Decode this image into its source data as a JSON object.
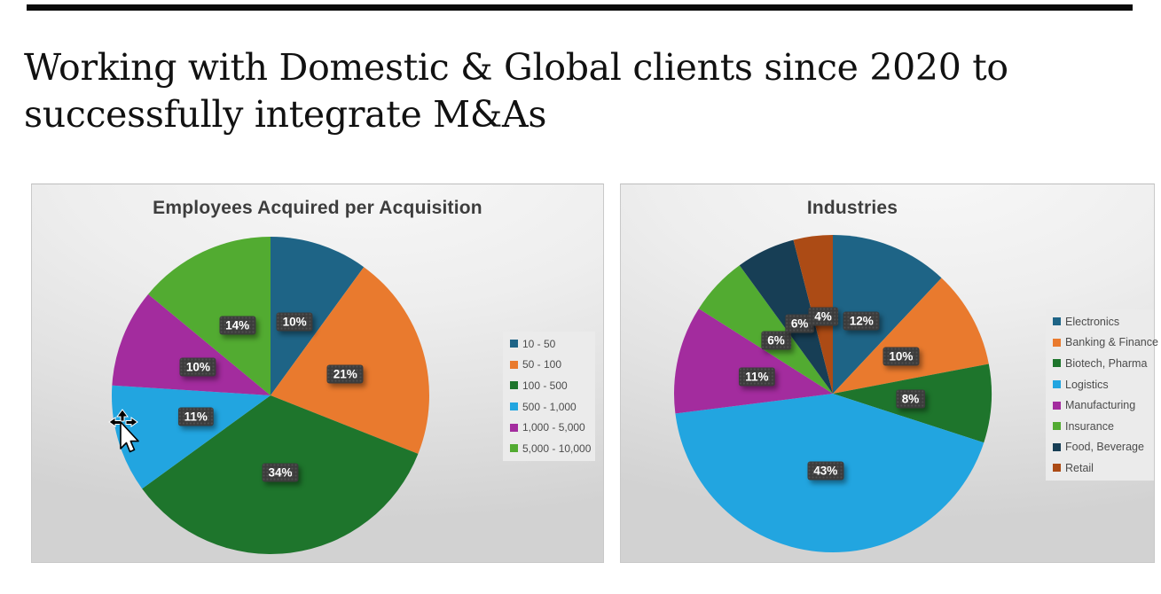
{
  "slide": {
    "title_line1": "Working with Domestic & Global clients since 2020 to",
    "title_line2": "successfully integrate M&As"
  },
  "chart_data": [
    {
      "type": "pie",
      "title": "Employees Acquired per Acquisition",
      "categories": [
        "10 - 50",
        "50 - 100",
        "100 - 500",
        "500 - 1,000",
        "1,000 - 5,000",
        "5,000 - 10,000"
      ],
      "values": [
        10,
        21,
        34,
        11,
        10,
        14
      ],
      "labels": [
        "10%",
        "21%",
        "34%",
        "11%",
        "10%",
        "14%"
      ],
      "unit": "percent",
      "colors": [
        "#1E6486",
        "#E97A2E",
        "#1E752C",
        "#22A5E0",
        "#A32C9E",
        "#52AB31"
      ],
      "legend_position": "right",
      "label_style": "dark-chip-white-text"
    },
    {
      "type": "pie",
      "title": "Industries",
      "categories": [
        "Electronics",
        "Banking & Finance",
        "Biotech, Pharma",
        "Logistics",
        "Manufacturing",
        "Insurance",
        "Food, Beverage",
        "Retail"
      ],
      "values": [
        12,
        10,
        8,
        43,
        11,
        6,
        6,
        4
      ],
      "labels": [
        "12%",
        "10%",
        "8%",
        "43%",
        "11%",
        "6%",
        "6%",
        "4%"
      ],
      "unit": "percent",
      "colors": [
        "#1E6486",
        "#E97A2E",
        "#1E752C",
        "#22A5E0",
        "#A32C9E",
        "#52AB31",
        "#173E55",
        "#AC4B15"
      ],
      "legend_position": "right",
      "label_style": "dark-chip-white-text"
    }
  ]
}
